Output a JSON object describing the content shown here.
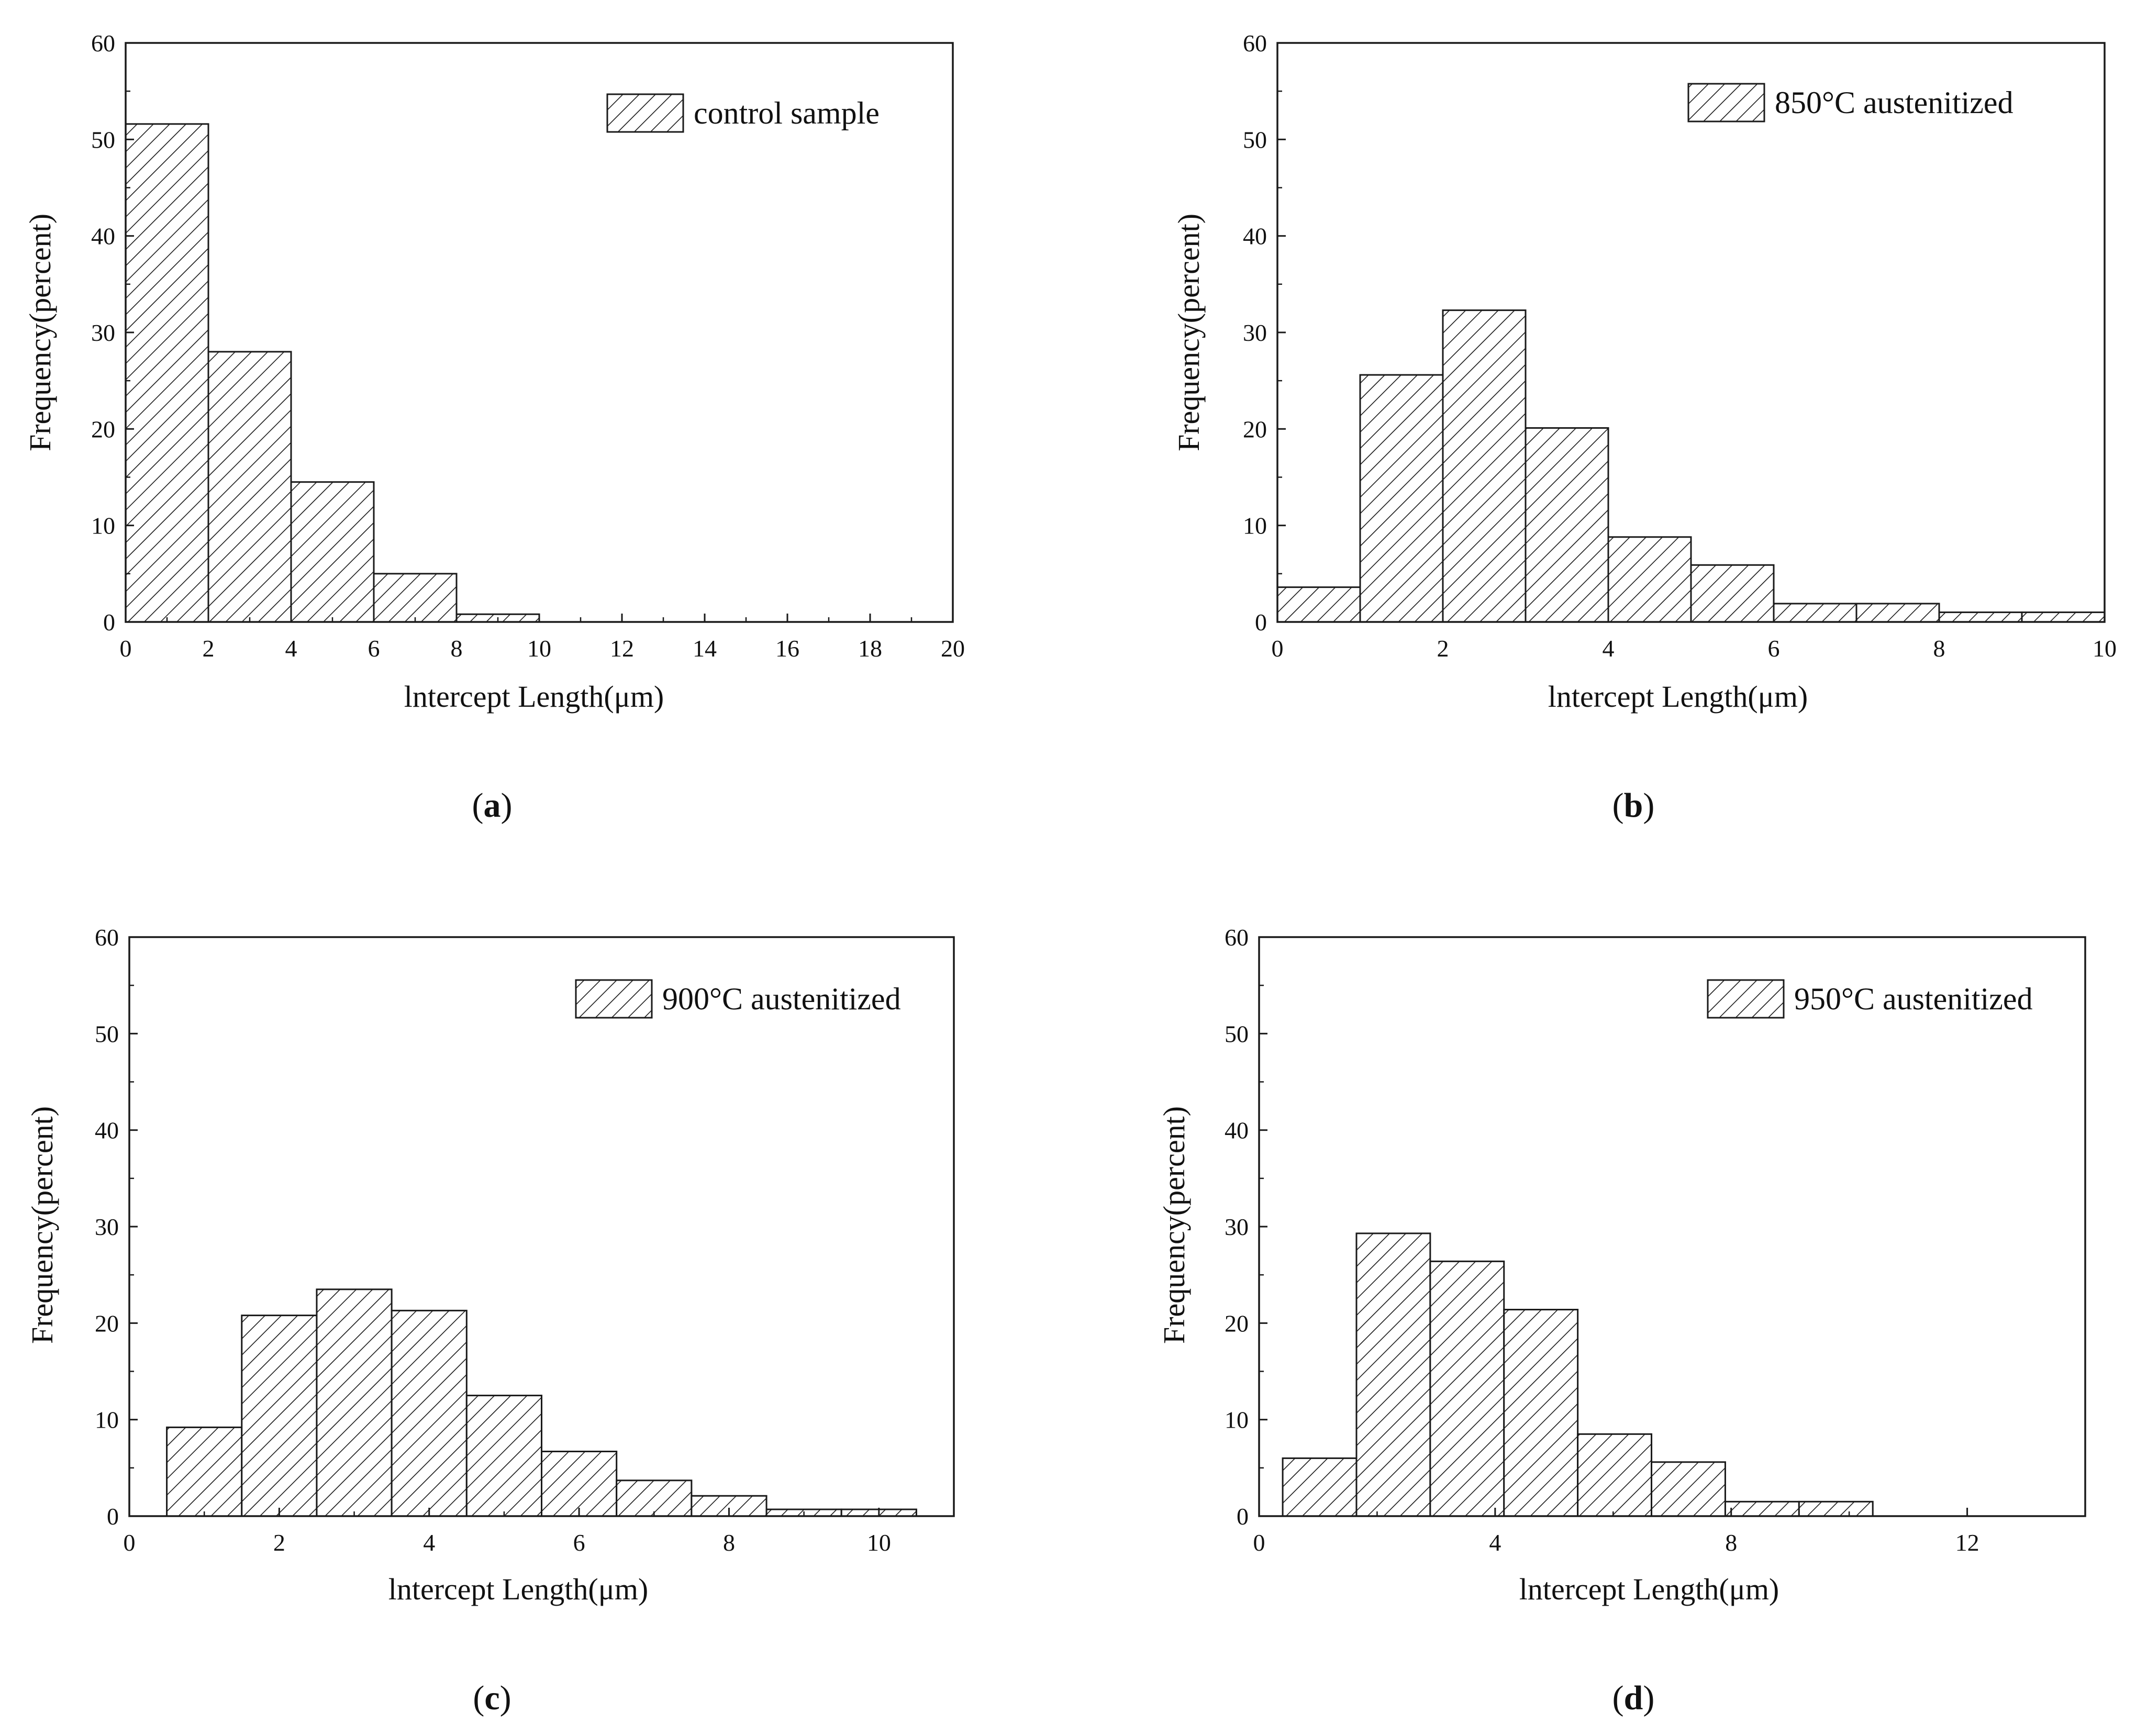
{
  "figure": {
    "panels": [
      "a",
      "b",
      "c",
      "d"
    ]
  },
  "colors": {
    "stroke": "#1a1a1a",
    "background": "#ffffff"
  },
  "chart_data": [
    {
      "id": "a",
      "type": "bar",
      "caption_letter": "a",
      "legend": "control sample",
      "xlabel": "lntercept Length(μm)",
      "ylabel": "Frequency(percent)",
      "xlim": [
        0,
        20
      ],
      "ylim": [
        0,
        60
      ],
      "xticks": [
        0,
        2,
        4,
        6,
        8,
        10,
        12,
        14,
        16,
        18,
        20
      ],
      "yticks": [
        0,
        10,
        20,
        30,
        40,
        50,
        60
      ],
      "bins": [
        {
          "x0": 0,
          "x1": 2,
          "value": 51.6
        },
        {
          "x0": 2,
          "x1": 4,
          "value": 28.0
        },
        {
          "x0": 4,
          "x1": 6,
          "value": 14.5
        },
        {
          "x0": 6,
          "x1": 8,
          "value": 5.0
        },
        {
          "x0": 8,
          "x1": 10,
          "value": 0.8
        }
      ]
    },
    {
      "id": "b",
      "type": "bar",
      "caption_letter": "b",
      "legend": "850°C austenitized",
      "xlabel": "lntercept Length(μm)",
      "ylabel": "Frequency(percent)",
      "xlim": [
        0,
        10
      ],
      "ylim": [
        0,
        60
      ],
      "xticks": [
        0,
        2,
        4,
        6,
        8,
        10
      ],
      "yticks": [
        0,
        10,
        20,
        30,
        40,
        50,
        60
      ],
      "bins": [
        {
          "x0": 0,
          "x1": 1,
          "value": 3.6
        },
        {
          "x0": 1,
          "x1": 2,
          "value": 25.6
        },
        {
          "x0": 2,
          "x1": 3,
          "value": 32.3
        },
        {
          "x0": 3,
          "x1": 4,
          "value": 20.1
        },
        {
          "x0": 4,
          "x1": 5,
          "value": 8.8
        },
        {
          "x0": 5,
          "x1": 6,
          "value": 5.9
        },
        {
          "x0": 6,
          "x1": 7,
          "value": 1.9
        },
        {
          "x0": 7,
          "x1": 8,
          "value": 1.9
        },
        {
          "x0": 8,
          "x1": 9,
          "value": 1.0
        },
        {
          "x0": 9,
          "x1": 10,
          "value": 1.0
        }
      ]
    },
    {
      "id": "c",
      "type": "bar",
      "caption_letter": "c",
      "legend": "900°C austenitized",
      "xlabel": "lntercept Length(μm)",
      "ylabel": "Frequency(percent)",
      "xlim": [
        0,
        11
      ],
      "ylim": [
        0,
        60
      ],
      "xticks": [
        0,
        2,
        4,
        6,
        8,
        10
      ],
      "yticks": [
        0,
        10,
        20,
        30,
        40,
        50,
        60
      ],
      "bins": [
        {
          "x0": 0.5,
          "x1": 1.5,
          "value": 9.2
        },
        {
          "x0": 1.5,
          "x1": 2.5,
          "value": 20.8
        },
        {
          "x0": 2.5,
          "x1": 3.5,
          "value": 23.5
        },
        {
          "x0": 3.5,
          "x1": 4.5,
          "value": 21.3
        },
        {
          "x0": 4.5,
          "x1": 5.5,
          "value": 12.5
        },
        {
          "x0": 5.5,
          "x1": 6.5,
          "value": 6.7
        },
        {
          "x0": 6.5,
          "x1": 7.5,
          "value": 3.7
        },
        {
          "x0": 7.5,
          "x1": 8.5,
          "value": 2.1
        },
        {
          "x0": 8.5,
          "x1": 9.5,
          "value": 0.7
        },
        {
          "x0": 9.5,
          "x1": 10.5,
          "value": 0.7
        }
      ]
    },
    {
      "id": "d",
      "type": "bar",
      "caption_letter": "d",
      "legend": "950°C austenitized",
      "xlabel": "lntercept Length(μm)",
      "ylabel": "Frequency(percent)",
      "xlim": [
        0,
        14
      ],
      "ylim": [
        0,
        60
      ],
      "xticks": [
        0,
        4,
        8,
        12
      ],
      "yticks": [
        0,
        10,
        20,
        30,
        40,
        50,
        60
      ],
      "bins": [
        {
          "x0": 0.4,
          "x1": 1.65,
          "value": 6.0
        },
        {
          "x0": 1.65,
          "x1": 2.9,
          "value": 29.3
        },
        {
          "x0": 2.9,
          "x1": 4.15,
          "value": 26.4
        },
        {
          "x0": 4.15,
          "x1": 5.4,
          "value": 21.4
        },
        {
          "x0": 5.4,
          "x1": 6.65,
          "value": 8.5
        },
        {
          "x0": 6.65,
          "x1": 7.9,
          "value": 5.6
        },
        {
          "x0": 7.9,
          "x1": 9.15,
          "value": 1.5
        },
        {
          "x0": 9.15,
          "x1": 10.4,
          "value": 1.5
        }
      ]
    }
  ]
}
